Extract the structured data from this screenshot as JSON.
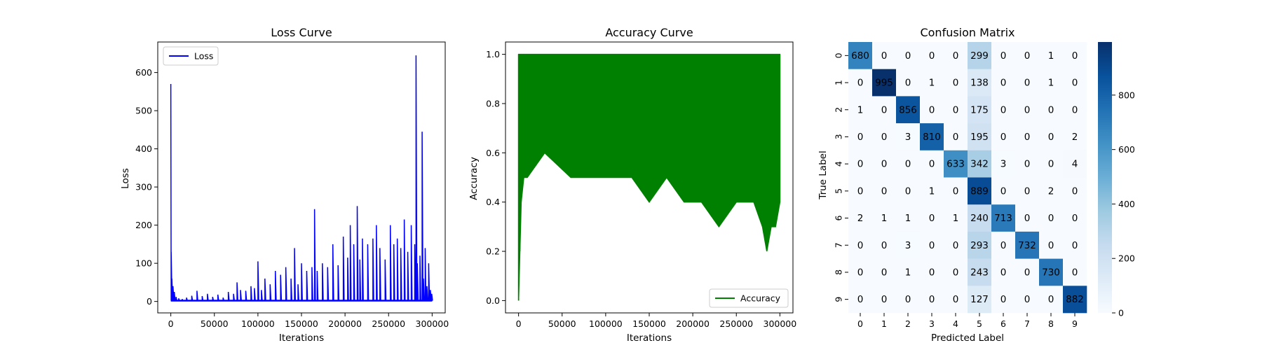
{
  "chart_data": [
    {
      "type": "line",
      "title": "Loss Curve",
      "xlabel": "Iterations",
      "ylabel": "Loss",
      "xlim": [
        -15000,
        315000
      ],
      "ylim": [
        -30,
        680
      ],
      "xticks": [
        0,
        50000,
        100000,
        150000,
        200000,
        250000,
        300000
      ],
      "yticks": [
        0,
        100,
        200,
        300,
        400,
        500,
        600
      ],
      "legend_position": "upper-left",
      "color": "#0000ff",
      "series": [
        {
          "name": "Loss",
          "x": [
            0,
            400,
            1200,
            2500,
            4000,
            6000,
            9000,
            13000,
            18000,
            24000,
            30000,
            36000,
            42000,
            48000,
            54000,
            60000,
            66000,
            72000,
            76000,
            80000,
            86000,
            92000,
            96000,
            100000,
            104000,
            108000,
            114000,
            120000,
            126000,
            132000,
            138000,
            142000,
            146000,
            150000,
            156000,
            162000,
            165000,
            168000,
            174000,
            180000,
            186000,
            192000,
            198000,
            203000,
            206000,
            210000,
            214000,
            217000,
            220000,
            226000,
            232000,
            236000,
            240000,
            246000,
            252000,
            256000,
            260000,
            264000,
            268000,
            272000,
            276000,
            280000,
            281500,
            283000,
            286000,
            288500,
            290000,
            292000,
            294000,
            296000,
            298000,
            299500
          ],
          "y": [
            570,
            130,
            60,
            40,
            25,
            12,
            8,
            6,
            10,
            15,
            28,
            14,
            20,
            12,
            18,
            10,
            25,
            20,
            50,
            30,
            28,
            40,
            35,
            105,
            30,
            60,
            45,
            80,
            70,
            90,
            60,
            140,
            45,
            100,
            80,
            90,
            242,
            80,
            100,
            90,
            150,
            95,
            170,
            115,
            200,
            150,
            250,
            110,
            165,
            150,
            165,
            200,
            140,
            110,
            200,
            150,
            165,
            140,
            215,
            130,
            200,
            150,
            645,
            100,
            120,
            445,
            60,
            140,
            40,
            100,
            30,
            20
          ]
        }
      ]
    },
    {
      "type": "line",
      "title": "Accuracy Curve",
      "xlabel": "Iterations",
      "ylabel": "Accuracy",
      "xlim": [
        -15000,
        315000
      ],
      "ylim": [
        -0.05,
        1.05
      ],
      "xticks": [
        0,
        50000,
        100000,
        150000,
        200000,
        250000,
        300000
      ],
      "yticks": [
        0.0,
        0.2,
        0.4,
        0.6,
        0.8,
        1.0
      ],
      "legend_position": "lower-right",
      "color": "#008000",
      "series": [
        {
          "name": "Accuracy",
          "x": [
            0,
            1500,
            3000,
            6000,
            10000,
            30000,
            60000,
            100000,
            130000,
            150000,
            170000,
            190000,
            210000,
            230000,
            250000,
            270000,
            280000,
            285000,
            290000,
            295000,
            300000
          ],
          "y": [
            0.0,
            0.2,
            0.4,
            0.5,
            0.5,
            0.6,
            0.5,
            0.5,
            0.5,
            0.4,
            0.5,
            0.4,
            0.4,
            0.3,
            0.4,
            0.4,
            0.3,
            0.2,
            0.3,
            0.3,
            0.4
          ]
        }
      ]
    },
    {
      "type": "heatmap",
      "title": "Confusion Matrix",
      "xlabel": "Predicted Label",
      "ylabel": "True Label",
      "x_categories": [
        "0",
        "1",
        "2",
        "3",
        "4",
        "5",
        "6",
        "7",
        "8",
        "9"
      ],
      "y_categories": [
        "0",
        "1",
        "2",
        "3",
        "4",
        "5",
        "6",
        "7",
        "8",
        "9"
      ],
      "colorbar_ticks": [
        0,
        200,
        400,
        600,
        800
      ],
      "colorbar_range": [
        0,
        995
      ],
      "colormap": "Blues",
      "matrix": [
        [
          680,
          0,
          0,
          0,
          0,
          299,
          0,
          0,
          1,
          0
        ],
        [
          0,
          995,
          0,
          1,
          0,
          138,
          0,
          0,
          1,
          0
        ],
        [
          1,
          0,
          856,
          0,
          0,
          175,
          0,
          0,
          0,
          0
        ],
        [
          0,
          0,
          3,
          810,
          0,
          195,
          0,
          0,
          0,
          2
        ],
        [
          0,
          0,
          0,
          0,
          633,
          342,
          3,
          0,
          0,
          4
        ],
        [
          0,
          0,
          0,
          1,
          0,
          889,
          0,
          0,
          2,
          0
        ],
        [
          2,
          1,
          1,
          0,
          1,
          240,
          713,
          0,
          0,
          0
        ],
        [
          0,
          0,
          3,
          0,
          0,
          293,
          0,
          732,
          0,
          0
        ],
        [
          0,
          0,
          1,
          0,
          0,
          243,
          0,
          0,
          730,
          0
        ],
        [
          0,
          0,
          0,
          0,
          0,
          127,
          0,
          0,
          0,
          882
        ]
      ]
    }
  ]
}
